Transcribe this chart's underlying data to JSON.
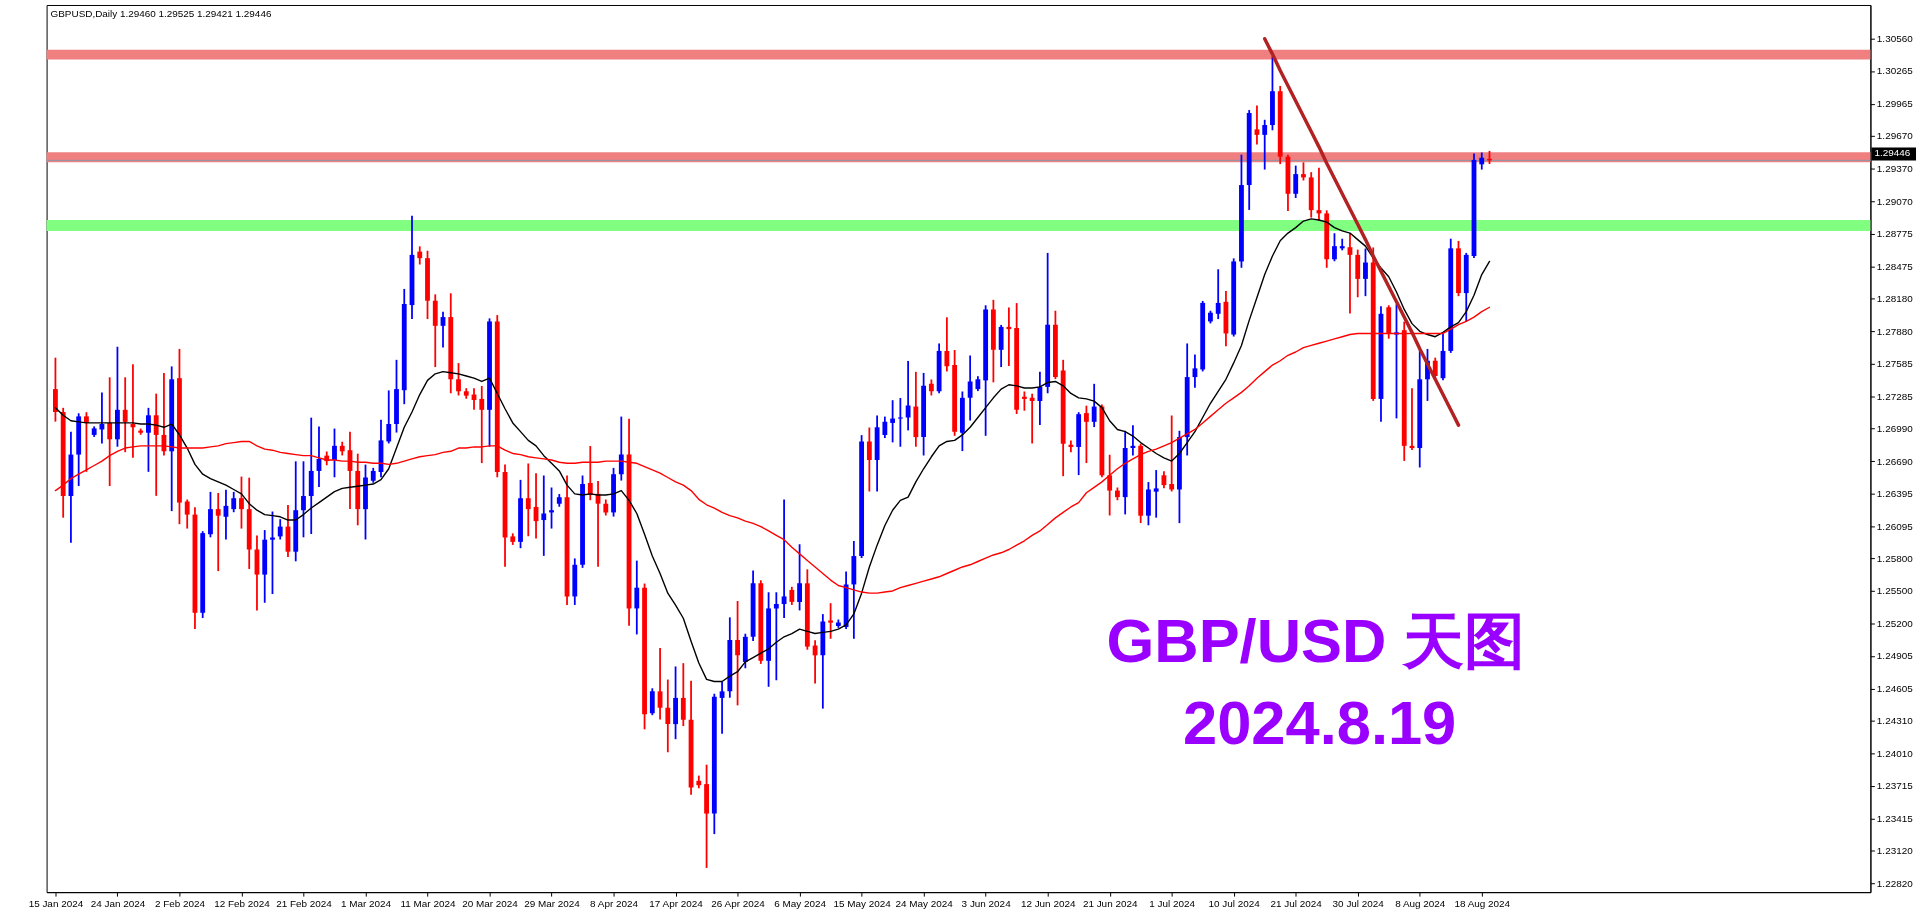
{
  "chart_data": {
    "type": "candlestick",
    "title": "GBPUSD,Daily 1.29460 1.29525 1.29421 1.29446",
    "categories": [
      "15 Jan 2024",
      null,
      null,
      null,
      null,
      null,
      null,
      null,
      "24 Jan 2024",
      null,
      null,
      null,
      null,
      null,
      null,
      null,
      "2 Feb 2024",
      null,
      null,
      null,
      null,
      null,
      null,
      null,
      "12 Feb 2024",
      null,
      null,
      null,
      null,
      null,
      null,
      null,
      "21 Feb 2024",
      null,
      null,
      null,
      null,
      null,
      null,
      null,
      "1 Mar 2024",
      null,
      null,
      null,
      null,
      null,
      null,
      null,
      "11 Mar 2024",
      null,
      null,
      null,
      null,
      null,
      null,
      null,
      "20 Mar 2024",
      null,
      null,
      null,
      null,
      null,
      null,
      null,
      "29 Mar 2024",
      null,
      null,
      null,
      null,
      null,
      null,
      null,
      "8 Apr 2024",
      null,
      null,
      null,
      null,
      null,
      null,
      null,
      "17 Apr 2024",
      null,
      null,
      null,
      null,
      null,
      null,
      null,
      "26 Apr 2024",
      null,
      null,
      null,
      null,
      null,
      null,
      null,
      "6 May 2024",
      null,
      null,
      null,
      null,
      null,
      null,
      null,
      "15 May 2024",
      null,
      null,
      null,
      null,
      null,
      null,
      null,
      "24 May 2024",
      null,
      null,
      null,
      null,
      null,
      null,
      null,
      "3 Jun 2024",
      null,
      null,
      null,
      null,
      null,
      null,
      null,
      "12 Jun 2024",
      null,
      null,
      null,
      null,
      null,
      null,
      null,
      "21 Jun 2024",
      null,
      null,
      null,
      null,
      null,
      null,
      null,
      "1 Jul 2024",
      null,
      null,
      null,
      null,
      null,
      null,
      null,
      "10 Jul 2024",
      null,
      null,
      null,
      null,
      null,
      null,
      null,
      "21 Jul 2024",
      null,
      null,
      null,
      null,
      null,
      null,
      null,
      "30 Jul 2024",
      null,
      null,
      null,
      null,
      null,
      null,
      null,
      "8 Aug 2024",
      null,
      null,
      null,
      null,
      null,
      null,
      null,
      "18 Aug 2024",
      null,
      null,
      null,
      null,
      null,
      null,
      null,
      null,
      null,
      null,
      null,
      null,
      null,
      null,
      null,
      null,
      null,
      null,
      null,
      null,
      null,
      null,
      null,
      null,
      null,
      null,
      null,
      null,
      null,
      null,
      null,
      null,
      null,
      null,
      null,
      null,
      null,
      null,
      null,
      null,
      null,
      null,
      null,
      null,
      null,
      null,
      null,
      null,
      null
    ],
    "ohlc": [
      [
        1.2735,
        1.2763,
        1.2706,
        1.2714
      ],
      [
        1.2714,
        1.2717,
        1.2618,
        1.2637
      ],
      [
        1.2637,
        1.2695,
        1.2595,
        1.2675
      ],
      [
        1.2675,
        1.2712,
        1.2647,
        1.271
      ],
      [
        1.271,
        1.2713,
        1.266,
        1.2704
      ],
      [
        1.2693,
        1.27,
        1.2692,
        1.2699
      ],
      [
        1.2698,
        1.2731,
        1.2686,
        1.2703
      ],
      [
        1.2704,
        1.2745,
        1.2647,
        1.2689
      ],
      [
        1.2689,
        1.2773,
        1.2683,
        1.2716
      ],
      [
        1.2716,
        1.2745,
        1.2678,
        1.2705
      ],
      [
        1.2703,
        1.2757,
        1.2673,
        1.27
      ],
      [
        1.2697,
        1.2698,
        1.2694,
        1.2695
      ],
      [
        1.2695,
        1.2717,
        1.266,
        1.2711
      ],
      [
        1.2711,
        1.273,
        1.2638,
        1.2693
      ],
      [
        1.2693,
        1.2749,
        1.2675,
        1.2678
      ],
      [
        1.2678,
        1.2755,
        1.2624,
        1.2744
      ],
      [
        1.2745,
        1.2771,
        1.2612,
        1.2631
      ],
      [
        1.2632,
        1.2633,
        1.2608,
        1.262
      ],
      [
        1.262,
        1.2626,
        1.2516,
        1.253
      ],
      [
        1.253,
        1.2604,
        1.2526,
        1.2603
      ],
      [
        1.2602,
        1.264,
        1.26,
        1.2625
      ],
      [
        1.2625,
        1.2639,
        1.2569,
        1.2619
      ],
      [
        1.2618,
        1.2642,
        1.2598,
        1.2628
      ],
      [
        1.2625,
        1.264,
        1.2623,
        1.2635
      ],
      [
        1.2635,
        1.2654,
        1.2608,
        1.2625
      ],
      [
        1.2625,
        1.2653,
        1.2571,
        1.2588
      ],
      [
        1.2588,
        1.26,
        1.2533,
        1.2565
      ],
      [
        1.2565,
        1.2605,
        1.254,
        1.2597
      ],
      [
        1.2597,
        1.2622,
        1.2548,
        1.2599
      ],
      [
        1.26,
        1.2615,
        1.2598,
        1.2609
      ],
      [
        1.2609,
        1.2628,
        1.2582,
        1.2586
      ],
      [
        1.2586,
        1.2668,
        1.2578,
        1.2624
      ],
      [
        1.2624,
        1.2668,
        1.26,
        1.2637
      ],
      [
        1.2637,
        1.2708,
        1.2603,
        1.266
      ],
      [
        1.266,
        1.27,
        1.2646,
        1.2671
      ],
      [
        1.2674,
        1.2677,
        1.2666,
        1.2669
      ],
      [
        1.267,
        1.2698,
        1.2655,
        1.2683
      ],
      [
        1.2683,
        1.2686,
        1.2675,
        1.2678
      ],
      [
        1.2679,
        1.2695,
        1.2626,
        1.266
      ],
      [
        1.266,
        1.2675,
        1.2611,
        1.2625
      ],
      [
        1.2625,
        1.2665,
        1.2598,
        1.2654
      ],
      [
        1.2651,
        1.2662,
        1.265,
        1.266
      ],
      [
        1.2659,
        1.2706,
        1.2655,
        1.2688
      ],
      [
        1.2687,
        1.2733,
        1.2686,
        1.2703
      ],
      [
        1.2703,
        1.2761,
        1.2696,
        1.2735
      ],
      [
        1.2734,
        1.2826,
        1.2722,
        1.2813
      ],
      [
        1.2812,
        1.2893,
        1.28,
        1.2858
      ],
      [
        1.2861,
        1.2865,
        1.285,
        1.2855
      ],
      [
        1.2855,
        1.2861,
        1.28,
        1.2816
      ],
      [
        1.2816,
        1.2821,
        1.2756,
        1.2793
      ],
      [
        1.2793,
        1.2805,
        1.2774,
        1.2801
      ],
      [
        1.2801,
        1.2822,
        1.2732,
        1.2744
      ],
      [
        1.2744,
        1.2758,
        1.273,
        1.2733
      ],
      [
        1.2733,
        1.2735,
        1.2727,
        1.2729
      ],
      [
        1.273,
        1.2735,
        1.2717,
        1.2725
      ],
      [
        1.2726,
        1.2737,
        1.2668,
        1.2716
      ],
      [
        1.2716,
        1.2799,
        1.2683,
        1.2797
      ],
      [
        1.2797,
        1.2802,
        1.2655,
        1.2659
      ],
      [
        1.2659,
        1.2665,
        1.2573,
        1.2599
      ],
      [
        1.26,
        1.2602,
        1.2593,
        1.2595
      ],
      [
        1.2595,
        1.2651,
        1.259,
        1.2635
      ],
      [
        1.2635,
        1.2666,
        1.2601,
        1.2625
      ],
      [
        1.2627,
        1.2657,
        1.2599,
        1.2614
      ],
      [
        1.2615,
        1.2655,
        1.2583,
        1.2621
      ],
      [
        1.2622,
        1.2644,
        1.2608,
        1.2624
      ],
      [
        1.263,
        1.2638,
        1.2628,
        1.2636
      ],
      [
        1.2636,
        1.2655,
        1.2538,
        1.2545
      ],
      [
        1.2545,
        1.2579,
        1.2538,
        1.2574
      ],
      [
        1.2574,
        1.2655,
        1.2572,
        1.2648
      ],
      [
        1.2649,
        1.2682,
        1.2634,
        1.2638
      ],
      [
        1.2639,
        1.265,
        1.2573,
        1.263
      ],
      [
        1.263,
        1.2633,
        1.262,
        1.2622
      ],
      [
        1.2622,
        1.2662,
        1.2619,
        1.2657
      ],
      [
        1.2657,
        1.2709,
        1.2652,
        1.2675
      ],
      [
        1.2675,
        1.2707,
        1.2519,
        1.2534
      ],
      [
        1.2534,
        1.2577,
        1.2511,
        1.2553
      ],
      [
        1.2553,
        1.2556,
        1.2424,
        1.2437
      ],
      [
        1.2438,
        1.246,
        1.2437,
        1.2458
      ],
      [
        1.2458,
        1.2497,
        1.2433,
        1.2443
      ],
      [
        1.2443,
        1.2468,
        1.2403,
        1.2428
      ],
      [
        1.2428,
        1.248,
        1.2415,
        1.2452
      ],
      [
        1.2452,
        1.2483,
        1.2427,
        1.2432
      ],
      [
        1.2432,
        1.2467,
        1.2364,
        1.237
      ],
      [
        1.2376,
        1.238,
        1.237,
        1.2372
      ],
      [
        1.2373,
        1.239,
        1.2297,
        1.2346
      ],
      [
        1.2346,
        1.2455,
        1.2328,
        1.2453
      ],
      [
        1.2452,
        1.2466,
        1.242,
        1.2458
      ],
      [
        1.2458,
        1.2525,
        1.2453,
        1.2505
      ],
      [
        1.2505,
        1.254,
        1.2446,
        1.2491
      ],
      [
        1.2485,
        1.251,
        1.248,
        1.2508
      ],
      [
        1.2508,
        1.2568,
        1.2505,
        1.2557
      ],
      [
        1.2557,
        1.2559,
        1.2484,
        1.2486
      ],
      [
        1.2486,
        1.2548,
        1.2463,
        1.2534
      ],
      [
        1.2534,
        1.2548,
        1.2469,
        1.2538
      ],
      [
        1.2538,
        1.2633,
        1.2526,
        1.2545
      ],
      [
        1.2551,
        1.2553,
        1.2538,
        1.254
      ],
      [
        1.254,
        1.2592,
        1.2533,
        1.2557
      ],
      [
        1.2557,
        1.2569,
        1.2497,
        1.2499
      ],
      [
        1.25,
        1.2504,
        1.2466,
        1.2491
      ],
      [
        1.2491,
        1.2528,
        1.2443,
        1.2522
      ],
      [
        1.2523,
        1.2538,
        1.2507,
        1.2521
      ],
      [
        1.2518,
        1.2523,
        1.2517,
        1.2521
      ],
      [
        1.2517,
        1.2567,
        1.2516,
        1.2556
      ],
      [
        1.2556,
        1.2595,
        1.2507,
        1.2582
      ],
      [
        1.2582,
        1.2692,
        1.2581,
        1.2687
      ],
      [
        1.2687,
        1.2699,
        1.2642,
        1.267
      ],
      [
        1.267,
        1.271,
        1.2642,
        1.27
      ],
      [
        1.2693,
        1.2709,
        1.2691,
        1.2705
      ],
      [
        1.2704,
        1.2724,
        1.2687,
        1.2708
      ],
      [
        1.2708,
        1.2726,
        1.2683,
        1.2709
      ],
      [
        1.2709,
        1.276,
        1.2698,
        1.272
      ],
      [
        1.2719,
        1.275,
        1.2683,
        1.2691
      ],
      [
        1.2691,
        1.2749,
        1.2675,
        1.2738
      ],
      [
        1.274,
        1.2743,
        1.273,
        1.2733
      ],
      [
        1.2733,
        1.2776,
        1.2732,
        1.277
      ],
      [
        1.277,
        1.28,
        1.2752,
        1.2756
      ],
      [
        1.2757,
        1.277,
        1.2693,
        1.2696
      ],
      [
        1.2695,
        1.2732,
        1.2679,
        1.2727
      ],
      [
        1.2727,
        1.2765,
        1.2707,
        1.2742
      ],
      [
        1.2735,
        1.2746,
        1.2734,
        1.2744
      ],
      [
        1.2743,
        1.2811,
        1.2693,
        1.2808
      ],
      [
        1.2808,
        1.2816,
        1.2742,
        1.2771
      ],
      [
        1.2771,
        1.2793,
        1.2756,
        1.2792
      ],
      [
        1.2792,
        1.2809,
        1.2757,
        1.279
      ],
      [
        1.2791,
        1.2813,
        1.2713,
        1.2716
      ],
      [
        1.2728,
        1.2732,
        1.2716,
        1.2726
      ],
      [
        1.2727,
        1.273,
        1.2686,
        1.2724
      ],
      [
        1.2724,
        1.275,
        1.2703,
        1.2737
      ],
      [
        1.2737,
        1.2859,
        1.2732,
        1.2794
      ],
      [
        1.2794,
        1.2806,
        1.2745,
        1.2746
      ],
      [
        1.2752,
        1.2761,
        1.2656,
        1.2685
      ],
      [
        1.2684,
        1.2687,
        1.2678,
        1.2682
      ],
      [
        1.2682,
        1.2713,
        1.2657,
        1.2712
      ],
      [
        1.2713,
        1.2719,
        1.2668,
        1.2705
      ],
      [
        1.2705,
        1.2739,
        1.2701,
        1.2719
      ],
      [
        1.2719,
        1.272,
        1.2655,
        1.2656
      ],
      [
        1.2656,
        1.2674,
        1.262,
        1.2642
      ],
      [
        1.2642,
        1.2644,
        1.2634,
        1.2636
      ],
      [
        1.2636,
        1.2696,
        1.2621,
        1.2681
      ],
      [
        1.2681,
        1.2701,
        1.2675,
        1.2683
      ],
      [
        1.2683,
        1.2684,
        1.2613,
        1.2619
      ],
      [
        1.2619,
        1.2649,
        1.2611,
        1.2643
      ],
      [
        1.2641,
        1.266,
        1.2618,
        1.2644
      ],
      [
        1.2656,
        1.2659,
        1.2645,
        1.2647
      ],
      [
        1.2648,
        1.271,
        1.2642,
        1.2643
      ],
      [
        1.2643,
        1.2696,
        1.2613,
        1.2691
      ],
      [
        1.2691,
        1.2776,
        1.2675,
        1.2746
      ],
      [
        1.2746,
        1.2766,
        1.2737,
        1.2754
      ],
      [
        1.2753,
        1.2815,
        1.2752,
        1.2814
      ],
      [
        1.2797,
        1.2806,
        1.2796,
        1.2805
      ],
      [
        1.2804,
        1.2844,
        1.28,
        1.2814
      ],
      [
        1.2815,
        1.2824,
        1.2775,
        1.2786
      ],
      [
        1.2785,
        1.2854,
        1.2784,
        1.2852
      ],
      [
        1.2852,
        1.2949,
        1.2847,
        1.2922
      ],
      [
        1.2922,
        1.299,
        1.29,
        1.2988
      ],
      [
        1.2973,
        1.2994,
        1.296,
        1.2968
      ],
      [
        1.2968,
        1.2981,
        1.2937,
        1.2977
      ],
      [
        1.2977,
        1.3039,
        1.2973,
        1.3008
      ],
      [
        1.3008,
        1.3012,
        1.2942,
        1.2948
      ],
      [
        1.2948,
        1.2949,
        1.2899,
        1.2914
      ],
      [
        1.2914,
        1.2939,
        1.2911,
        1.2932
      ],
      [
        1.2932,
        1.2942,
        1.2927,
        1.2929
      ],
      [
        1.2929,
        1.2933,
        1.2893,
        1.2899
      ],
      [
        1.2899,
        1.2937,
        1.289,
        1.2896
      ],
      [
        1.2896,
        1.2898,
        1.2847,
        1.2854
      ],
      [
        1.2854,
        1.2877,
        1.2853,
        1.2866
      ],
      [
        1.2864,
        1.2872,
        1.2863,
        1.2866
      ],
      [
        1.2865,
        1.2877,
        1.2805,
        1.2858
      ],
      [
        1.2858,
        1.2862,
        1.282,
        1.2836
      ],
      [
        1.2836,
        1.2863,
        1.2821,
        1.2851
      ],
      [
        1.2851,
        1.2864,
        1.2725,
        1.2726
      ],
      [
        1.2726,
        1.281,
        1.2706,
        1.2804
      ],
      [
        1.281,
        1.2811,
        1.2782,
        1.2786
      ],
      [
        1.2785,
        1.2812,
        1.2709,
        1.2787
      ],
      [
        1.2789,
        1.2796,
        1.267,
        1.2683
      ],
      [
        1.2683,
        1.2735,
        1.268,
        1.2681
      ],
      [
        1.2681,
        1.2771,
        1.2664,
        1.2744
      ],
      [
        1.2744,
        1.2771,
        1.2725,
        1.2761
      ],
      [
        1.2761,
        1.2763,
        1.2745,
        1.2747
      ],
      [
        1.2745,
        1.2785,
        1.2744,
        1.277
      ],
      [
        1.277,
        1.2872,
        1.2769,
        1.2864
      ],
      [
        1.2864,
        1.287,
        1.2821,
        1.2823
      ],
      [
        1.2823,
        1.2859,
        1.2798,
        1.2858
      ],
      [
        1.2857,
        1.295,
        1.2856,
        1.2945
      ],
      [
        1.2941,
        1.2951,
        1.2937,
        1.2947
      ],
      [
        1.2946,
        1.29525,
        1.29421,
        1.29446
      ],
      null,
      null,
      null,
      null,
      null,
      null,
      null,
      null,
      null,
      null,
      null,
      null,
      null,
      null,
      null,
      null,
      null,
      null,
      null,
      null,
      null,
      null,
      null,
      null,
      null,
      null,
      null,
      null,
      null,
      null,
      null,
      null,
      null,
      null,
      null,
      null,
      null,
      null,
      null,
      null,
      null,
      null,
      null,
      null,
      null,
      null,
      null,
      null
    ],
    "colors": [
      "#ff0000",
      "#ff0000",
      "#0000ff",
      "#0000ff",
      "#ff0000",
      "#0000ff",
      "#0000ff",
      "#ff0000",
      "#0000ff",
      "#ff0000",
      "#ff0000",
      "#ff0000",
      "#0000ff",
      "#ff0000",
      "#ff0000",
      "#0000ff",
      "#ff0000",
      "#ff0000",
      "#ff0000",
      "#0000ff",
      "#0000ff",
      "#ff0000",
      "#0000ff",
      "#0000ff",
      "#ff0000",
      "#ff0000",
      "#ff0000",
      "#0000ff",
      "#0000ff",
      "#0000ff",
      "#ff0000",
      "#0000ff",
      "#0000ff",
      "#0000ff",
      "#0000ff",
      "#ff0000",
      "#0000ff",
      "#ff0000",
      "#ff0000",
      "#ff0000",
      "#0000ff",
      "#0000ff",
      "#0000ff",
      "#0000ff",
      "#0000ff",
      "#0000ff",
      "#0000ff",
      "#ff0000",
      "#ff0000",
      "#ff0000",
      "#0000ff",
      "#ff0000",
      "#ff0000",
      "#ff0000",
      "#ff0000",
      "#ff0000",
      "#0000ff",
      "#ff0000",
      "#ff0000",
      "#ff0000",
      "#0000ff",
      "#ff0000",
      "#ff0000",
      "#0000ff",
      "#0000ff",
      "#0000ff",
      "#ff0000",
      "#0000ff",
      "#0000ff",
      "#ff0000",
      "#ff0000",
      "#ff0000",
      "#0000ff",
      "#0000ff",
      "#ff0000",
      "#0000ff",
      "#ff0000",
      "#0000ff",
      "#ff0000",
      "#ff0000",
      "#0000ff",
      "#ff0000",
      "#ff0000",
      "#ff0000",
      "#ff0000",
      "#0000ff",
      "#0000ff",
      "#0000ff",
      "#ff0000",
      "#0000ff",
      "#0000ff",
      "#ff0000",
      "#0000ff",
      "#0000ff",
      "#0000ff",
      "#ff0000",
      "#0000ff",
      "#ff0000",
      "#ff0000",
      "#0000ff",
      "#ff0000",
      "#0000ff",
      "#0000ff",
      "#0000ff",
      "#0000ff",
      "#ff0000",
      "#0000ff",
      "#0000ff",
      "#0000ff",
      "#0000ff",
      "#0000ff",
      "#ff0000",
      "#0000ff",
      "#ff0000",
      "#0000ff",
      "#ff0000",
      "#ff0000",
      "#0000ff",
      "#0000ff",
      "#0000ff",
      "#0000ff",
      "#ff0000",
      "#0000ff",
      "#ff0000",
      "#ff0000",
      "#ff0000",
      "#ff0000",
      "#0000ff",
      "#0000ff",
      "#ff0000",
      "#ff0000",
      "#ff0000",
      "#0000ff",
      "#ff0000",
      "#0000ff",
      "#ff0000",
      "#ff0000",
      "#ff0000",
      "#0000ff",
      "#0000ff",
      "#ff0000",
      "#0000ff",
      "#0000ff",
      "#ff0000",
      "#ff0000",
      "#0000ff",
      "#0000ff",
      "#0000ff",
      "#0000ff",
      "#0000ff",
      "#0000ff",
      "#ff0000",
      "#0000ff",
      "#0000ff",
      "#0000ff",
      "#ff0000",
      "#0000ff",
      "#0000ff",
      "#ff0000",
      "#ff0000",
      "#0000ff",
      "#ff0000",
      "#ff0000",
      "#ff0000",
      "#ff0000",
      "#0000ff",
      "#0000ff",
      "#ff0000",
      "#ff0000",
      "#0000ff",
      "#ff0000",
      "#0000ff",
      "#ff0000",
      "#0000ff",
      "#ff0000",
      "#ff0000",
      "#0000ff",
      "#0000ff",
      "#ff0000",
      "#0000ff",
      "#0000ff",
      "#ff0000",
      "#0000ff",
      "#0000ff",
      "#0000ff",
      "#ff0000",
      null,
      null,
      null,
      null,
      null,
      null,
      null,
      null,
      null,
      null,
      null,
      null,
      null,
      null,
      null,
      null,
      null,
      null,
      null,
      null,
      null,
      null,
      null,
      null,
      null,
      null,
      null,
      null,
      null,
      null,
      null,
      null,
      null,
      null,
      null,
      null,
      null,
      null,
      null,
      null,
      null,
      null,
      null,
      null,
      null,
      null,
      null,
      null
    ],
    "series": [
      {
        "type": "line",
        "color": "#000000",
        "values": [
          1.2718,
          1.2711,
          1.2706,
          1.2705,
          1.2704,
          1.2704,
          1.2704,
          1.2704,
          1.2704,
          1.2704,
          1.2704,
          1.2703,
          1.2703,
          1.2702,
          1.27,
          1.2703,
          1.2693,
          1.2681,
          1.2666,
          1.2657,
          1.2653,
          1.265,
          1.2647,
          1.2643,
          1.2639,
          1.263,
          1.2624,
          1.262,
          1.2619,
          1.2618,
          1.2615,
          1.2615,
          1.262,
          1.2626,
          1.2631,
          1.2636,
          1.2641,
          1.2644,
          1.2645,
          1.2646,
          1.2647,
          1.2648,
          1.2652,
          1.2662,
          1.2681,
          1.27,
          1.2714,
          1.273,
          1.2743,
          1.2749,
          1.2751,
          1.275,
          1.2749,
          1.2747,
          1.2745,
          1.2742,
          1.2745,
          1.2731,
          1.2717,
          1.2704,
          1.2696,
          1.2688,
          1.2683,
          1.2674,
          1.2667,
          1.266,
          1.2647,
          1.2639,
          1.2638,
          1.2639,
          1.2638,
          1.2638,
          1.2639,
          1.2642,
          1.2633,
          1.2621,
          1.2602,
          1.2582,
          1.2566,
          1.2548,
          1.2537,
          1.2525,
          1.2504,
          1.2484,
          1.2469,
          1.2467,
          1.2467,
          1.2472,
          1.2476,
          1.2485,
          1.2489,
          1.2493,
          1.2497,
          1.2503,
          1.2508,
          1.2511,
          1.2515,
          1.2513,
          1.2511,
          1.2512,
          1.2513,
          1.2515,
          1.2519,
          1.2529,
          1.2548,
          1.2572,
          1.2592,
          1.261,
          1.2624,
          1.2633,
          1.2636,
          1.265,
          1.2662,
          1.2673,
          1.2683,
          1.2687,
          1.2688,
          1.2693,
          1.27,
          1.2709,
          1.2718,
          1.2727,
          1.2735,
          1.2739,
          1.2738,
          1.2736,
          1.2736,
          1.2737,
          1.2741,
          1.2742,
          1.2738,
          1.2731,
          1.2727,
          1.2726,
          1.2724,
          1.2718,
          1.2706,
          1.2698,
          1.2696,
          1.2692,
          1.2686,
          1.2681,
          1.2676,
          1.2672,
          1.2669,
          1.2676,
          1.2686,
          1.2696,
          1.2709,
          1.2722,
          1.2733,
          1.2744,
          1.2759,
          1.2775,
          1.2798,
          1.2819,
          1.284,
          1.2857,
          1.2871,
          1.2878,
          1.2883,
          1.2889,
          1.2891,
          1.289,
          1.2888,
          1.2883,
          1.288,
          1.2878,
          1.2872,
          1.2866,
          1.2855,
          1.2846,
          1.2838,
          1.2824,
          1.2808,
          1.2795,
          1.2788,
          1.2785,
          1.2783,
          1.2787,
          1.2792,
          1.2796,
          1.2806,
          1.2821,
          1.284,
          1.2852,
          null,
          null,
          null,
          null,
          null,
          null,
          null,
          null,
          null,
          null,
          null,
          null,
          null,
          null,
          null,
          null,
          null,
          null,
          null,
          null,
          null,
          null,
          null,
          null,
          null,
          null,
          null,
          null,
          null,
          null,
          null,
          null,
          null,
          null,
          null,
          null,
          null,
          null,
          null,
          null,
          null,
          null,
          null,
          null,
          null,
          null,
          null,
          null
        ]
      },
      {
        "type": "line",
        "color": "#ff0000",
        "values": [
          1.2642,
          1.2647,
          1.2653,
          1.2657,
          1.2661,
          1.2665,
          1.2669,
          1.2674,
          1.2678,
          1.2681,
          1.2682,
          1.2683,
          1.2683,
          1.2683,
          1.2683,
          1.2682,
          1.2681,
          1.2681,
          1.2681,
          1.2681,
          1.2682,
          1.2683,
          1.2685,
          1.2686,
          1.2687,
          1.2687,
          1.2683,
          1.268,
          1.2679,
          1.2677,
          1.2676,
          1.2675,
          1.2674,
          1.2674,
          1.2672,
          1.267,
          1.267,
          1.2669,
          1.2669,
          1.2668,
          1.2668,
          1.2667,
          1.2667,
          1.2666,
          1.2667,
          1.2669,
          1.2671,
          1.2673,
          1.2674,
          1.2675,
          1.2677,
          1.2678,
          1.2681,
          1.2681,
          1.2682,
          1.2682,
          1.2683,
          1.2683,
          1.2679,
          1.2676,
          1.2675,
          1.2673,
          1.2672,
          1.2671,
          1.267,
          1.2668,
          1.2667,
          1.2667,
          1.2668,
          1.2668,
          1.2668,
          1.2669,
          1.2669,
          1.2669,
          1.2668,
          1.2667,
          1.2664,
          1.2661,
          1.2658,
          1.2654,
          1.265,
          1.2647,
          1.2642,
          1.2634,
          1.2629,
          1.2626,
          1.2622,
          1.2619,
          1.2617,
          1.2614,
          1.2612,
          1.2609,
          1.2605,
          1.2601,
          1.2597,
          1.259,
          1.2584,
          1.2578,
          1.2572,
          1.2566,
          1.256,
          1.2555,
          1.2553,
          1.2551,
          1.2549,
          1.2548,
          1.2548,
          1.2549,
          1.255,
          1.2553,
          1.2555,
          1.2557,
          1.2559,
          1.2561,
          1.2563,
          1.2566,
          1.2569,
          1.2572,
          1.2574,
          1.2577,
          1.258,
          1.2583,
          1.2585,
          1.2588,
          1.2592,
          1.2596,
          1.2601,
          1.2605,
          1.2611,
          1.2617,
          1.2622,
          1.2627,
          1.2631,
          1.264,
          1.2645,
          1.265,
          1.2656,
          1.2662,
          1.2667,
          1.2671,
          1.2675,
          1.2678,
          1.268,
          1.2683,
          1.2686,
          1.269,
          1.2694,
          1.2698,
          1.2704,
          1.271,
          1.2716,
          1.2722,
          1.2727,
          1.2732,
          1.2738,
          1.2745,
          1.2751,
          1.2757,
          1.2761,
          1.2766,
          1.2769,
          1.2773,
          1.2775,
          1.2777,
          1.2779,
          1.2781,
          1.2783,
          1.2785,
          1.2786,
          1.2786,
          1.2786,
          1.2786,
          1.2786,
          1.2786,
          1.2786,
          1.2786,
          1.2786,
          1.2786,
          1.2786,
          1.2786,
          1.279,
          1.2794,
          1.2797,
          1.2801,
          1.2806,
          1.281,
          null,
          null,
          null,
          null,
          null,
          null,
          null,
          null,
          null,
          null,
          null,
          null,
          null,
          null,
          null,
          null,
          null,
          null,
          null,
          null,
          null,
          null,
          null,
          null,
          null,
          null,
          null,
          null,
          null,
          null,
          null,
          null,
          null,
          null,
          null,
          null,
          null,
          null,
          null,
          null,
          null,
          null,
          null,
          null,
          null,
          null,
          null,
          null
        ]
      },
      {
        "type": "line",
        "color": "#b22222",
        "values": [
          null,
          null,
          null,
          null,
          null,
          null,
          null,
          null,
          null,
          null,
          null,
          null,
          null,
          null,
          null,
          null,
          null,
          null,
          null,
          null,
          null,
          null,
          null,
          null,
          null,
          null,
          null,
          null,
          null,
          null,
          null,
          null,
          null,
          null,
          null,
          null,
          null,
          null,
          null,
          null,
          null,
          null,
          null,
          null,
          null,
          null,
          null,
          null,
          null,
          null,
          null,
          null,
          null,
          null,
          null,
          null,
          null,
          null,
          null,
          null,
          null,
          null,
          null,
          null,
          null,
          null,
          null,
          null,
          null,
          null,
          null,
          null,
          null,
          null,
          null,
          null,
          null,
          null,
          null,
          null,
          null,
          null,
          null,
          null,
          null,
          null,
          null,
          null,
          null,
          null,
          null,
          null,
          null,
          null,
          null,
          null,
          null,
          null,
          null,
          null,
          null,
          null,
          null,
          null,
          null,
          null,
          null,
          null,
          null,
          null,
          null,
          null,
          null,
          null,
          null,
          null,
          null,
          null,
          null,
          null,
          null,
          null,
          null,
          null,
          null,
          null,
          null,
          null,
          null,
          null,
          null,
          null,
          null,
          null,
          null,
          null,
          null,
          null,
          null,
          null,
          null,
          null,
          null,
          null,
          null,
          null,
          null,
          null,
          null,
          null,
          null,
          null,
          null,
          null,
          null,
          null,
          1.3056,
          1.3042,
          1.3027,
          1.3013,
          1.2999,
          1.2985,
          1.2971,
          1.2957,
          1.2942,
          1.2928,
          1.2914,
          1.29,
          1.2886,
          1.2872,
          1.2857,
          1.2843,
          1.2829,
          1.2815,
          1.2801,
          1.2787,
          1.2772,
          1.2758,
          1.2744,
          1.273,
          1.2716,
          1.2702,
          null,
          null,
          null,
          null,
          null,
          null,
          null,
          null,
          null,
          null,
          null,
          null,
          null,
          null,
          null,
          null,
          null,
          null,
          null,
          null,
          null,
          null,
          null,
          null,
          null,
          null,
          null,
          null,
          null,
          null,
          null,
          null,
          null,
          null,
          null,
          null,
          null,
          null,
          null,
          null,
          null,
          null,
          null,
          null,
          null,
          null,
          null,
          null,
          null,
          null,
          null,
          null
        ]
      }
    ],
    "ylim": [
      1.2274,
      1.3087
    ],
    "yticks": [
      {
        "value": 1.2282,
        "label": "1.22820"
      },
      {
        "value": 1.2312,
        "label": "1.23120"
      },
      1.23415,
      1.23715,
      {
        "value": 1.2401,
        "label": "1.24010"
      },
      {
        "value": 1.2431,
        "label": "1.24310"
      },
      1.24605,
      1.24905,
      {
        "value": 1.252,
        "label": "1.25200"
      },
      {
        "value": 1.255,
        "label": "1.25500"
      },
      {
        "value": 1.258,
        "label": "1.25800"
      },
      1.26095,
      1.26395,
      {
        "value": 1.2669,
        "label": "1.26690"
      },
      {
        "value": 1.2699,
        "label": "1.26990"
      },
      1.27285,
      1.27585,
      {
        "value": 1.2788,
        "label": "1.27880"
      },
      {
        "value": 1.2818,
        "label": "1.28180"
      },
      1.28475,
      1.28775,
      {
        "value": 1.2907,
        "label": "1.29070"
      },
      {
        "value": 1.2937,
        "label": "1.29370"
      },
      {
        "value": 1.2967,
        "label": "1.29670"
      },
      1.29965,
      1.30265,
      {
        "value": 1.3056,
        "label": "1.30560"
      }
    ],
    "bands": [
      {
        "axis": "y",
        "from": 1.288,
        "to": 1.289,
        "color": "#80ff80"
      },
      {
        "axis": "y",
        "from": 1.3037,
        "to": 1.3046,
        "color": "#f08080"
      },
      {
        "axis": "y",
        "from": 1.2943,
        "to": 1.2952,
        "color": "#f08080"
      }
    ],
    "ref_lines": [
      {
        "axis": "y",
        "value": 1.29446,
        "label": "1.29446",
        "color": "#8a96a8"
      }
    ],
    "annotations": [
      "GBP/USD 天图",
      "2024.8.19"
    ]
  }
}
